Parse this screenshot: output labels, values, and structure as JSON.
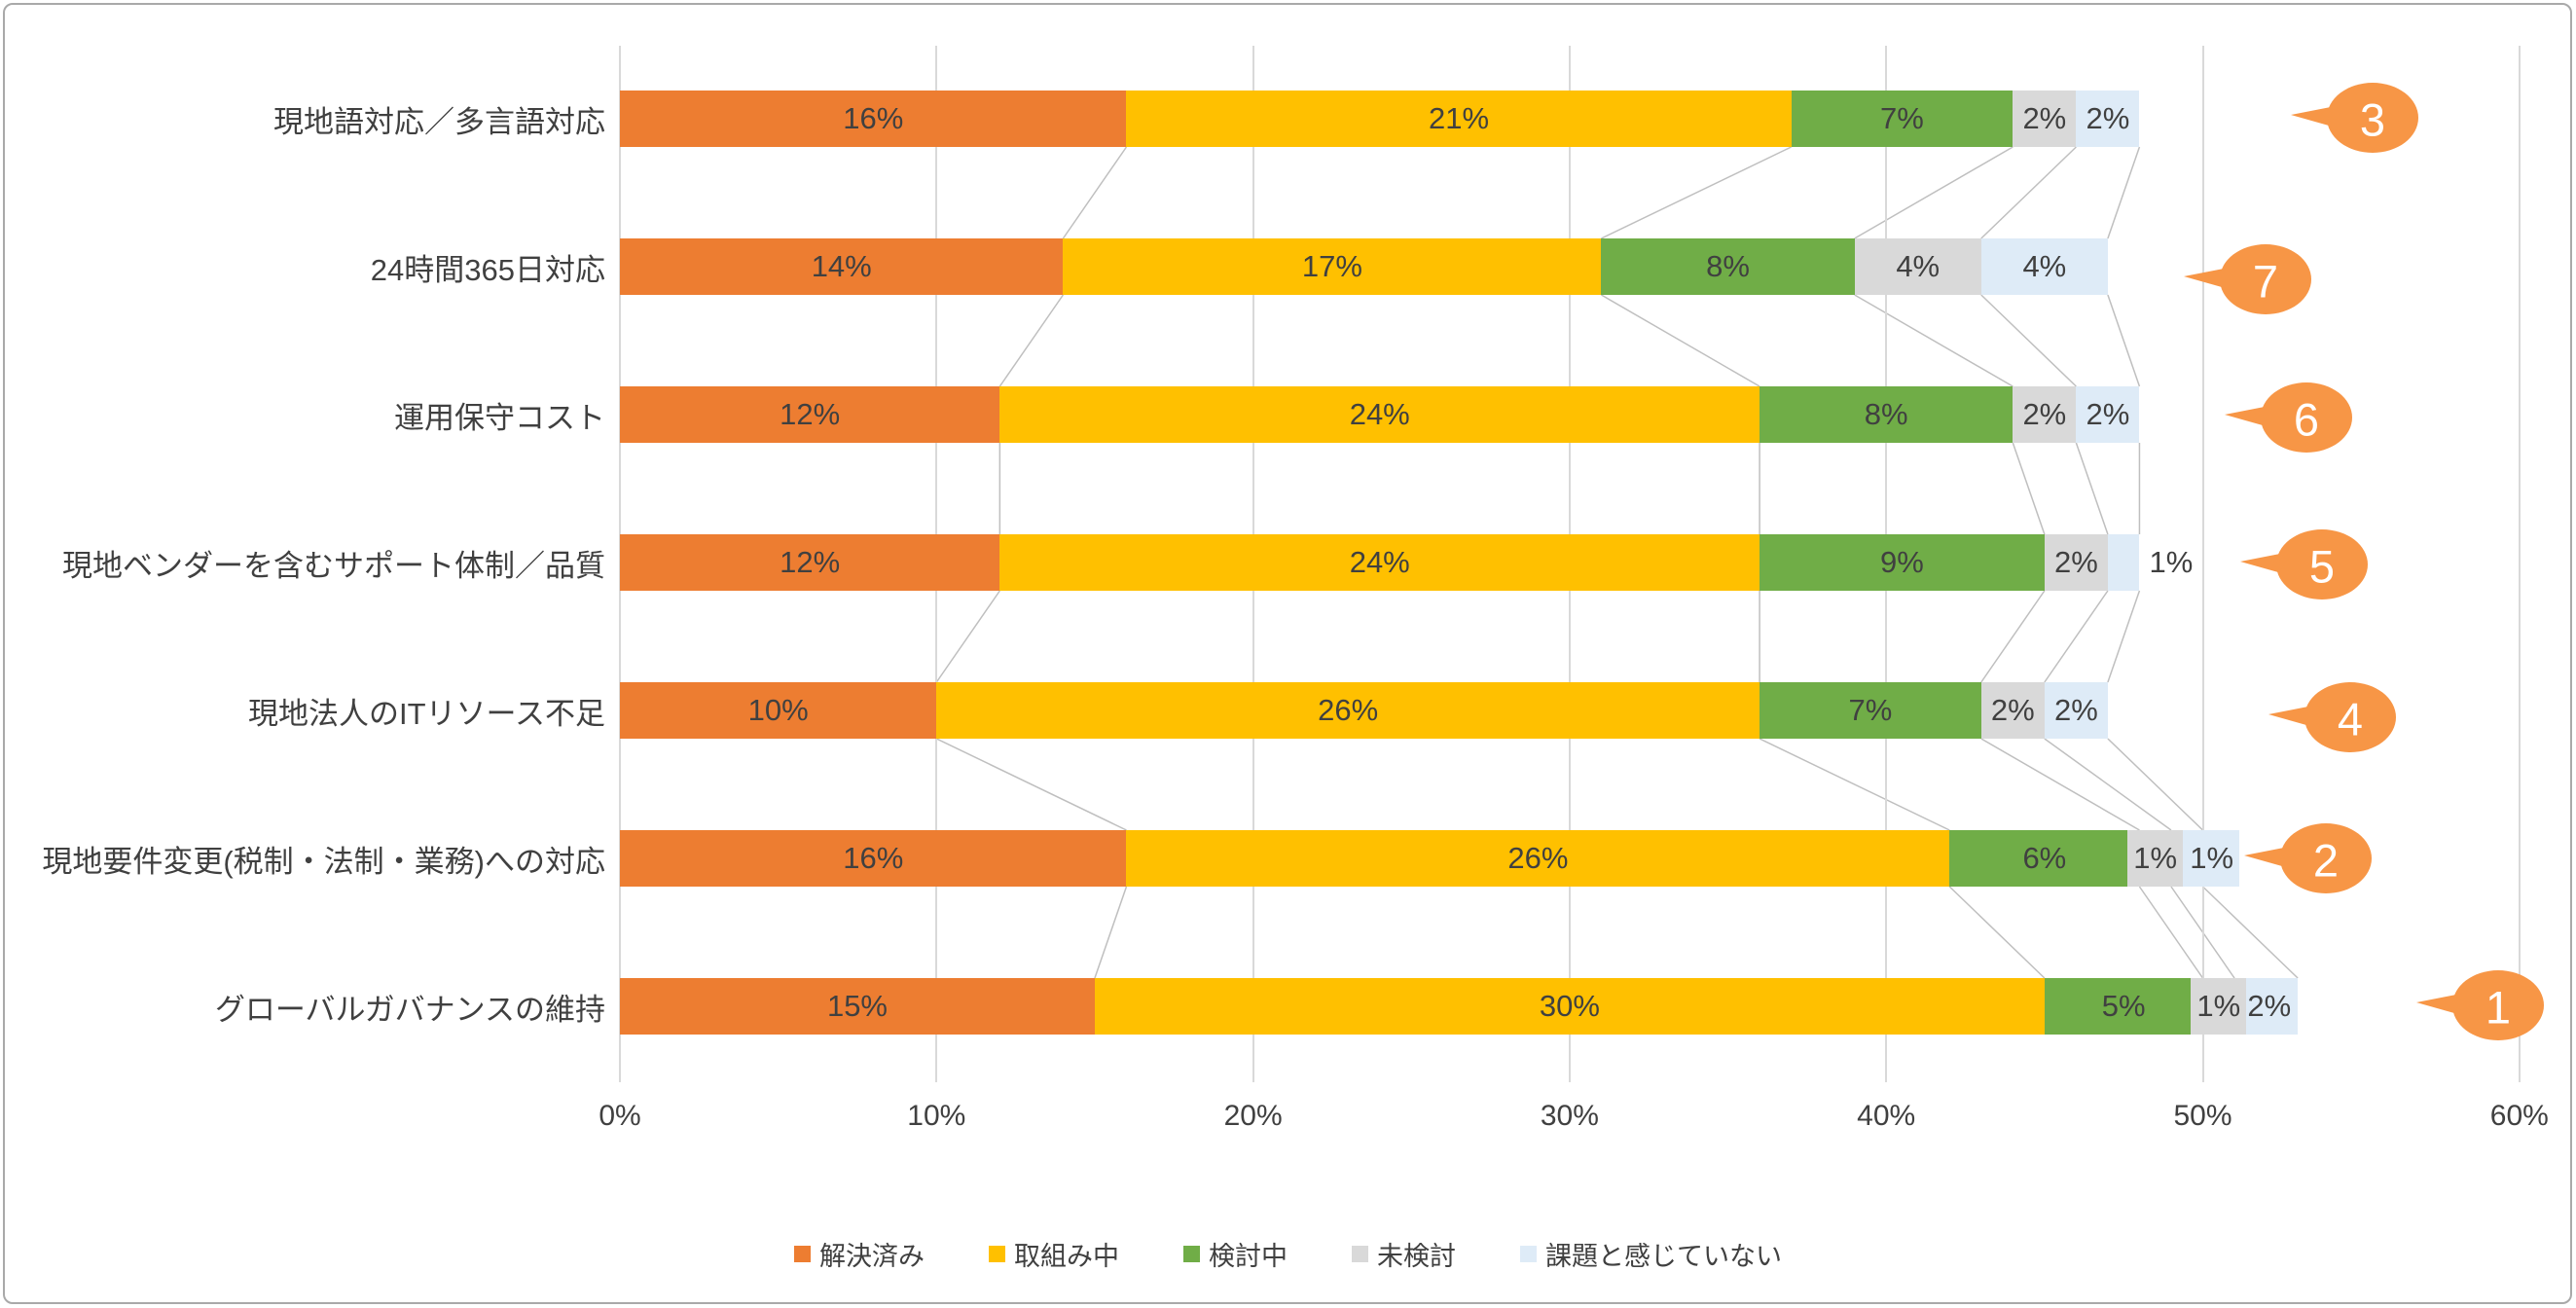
{
  "chart_data": {
    "type": "bar",
    "orientation": "horizontal",
    "stacked": true,
    "title": "",
    "xlabel": "",
    "ylabel": "",
    "xlim": [
      0,
      60
    ],
    "grid": true,
    "legend_position": "bottom",
    "value_suffix": "%",
    "x_ticks": [
      "0%",
      "10%",
      "20%",
      "30%",
      "40%",
      "50%",
      "60%"
    ],
    "categories": [
      "現地語対応／多言語対応",
      "24時間365日対応",
      "運用保守コスト",
      "現地ベンダーを含むサポート体制／品質",
      "現地法人のITリソース不足",
      "現地要件変更(税制・法制・業務)への対応",
      "グローバルガバナンスの維持"
    ],
    "series": [
      {
        "name": "解決済み",
        "color": "#ED7D31",
        "values": [
          16,
          14,
          12,
          12,
          10,
          16,
          15
        ]
      },
      {
        "name": "取組み中",
        "color": "#FFC000",
        "values": [
          21,
          17,
          24,
          24,
          26,
          26,
          30
        ]
      },
      {
        "name": "検討中",
        "color": "#70AD47",
        "values": [
          7,
          8,
          8,
          9,
          7,
          6,
          5
        ]
      },
      {
        "name": "未検討",
        "color": "#D9D9D9",
        "values": [
          2,
          4,
          2,
          2,
          2,
          1,
          1
        ]
      },
      {
        "name": "課題と感じていない",
        "color": "#DEEBF7",
        "values": [
          2,
          4,
          2,
          1,
          2,
          1,
          2
        ]
      }
    ],
    "row_totals": [
      "48%",
      "47%",
      "48%",
      "48%",
      "47%",
      "50%",
      "53%"
    ]
  },
  "row_badges": {
    "color": "#F79646",
    "text_color": "#FFFFFF",
    "items": [
      {
        "value": "3"
      },
      {
        "value": "7"
      },
      {
        "value": "6"
      },
      {
        "value": "5"
      },
      {
        "value": "4"
      },
      {
        "value": "2"
      },
      {
        "value": "1"
      }
    ]
  },
  "colors": {
    "gridline": "#D9D9D9",
    "connector": "#BFBFBF",
    "label_text": "#404040",
    "frame_border": "#A9A9A9"
  }
}
